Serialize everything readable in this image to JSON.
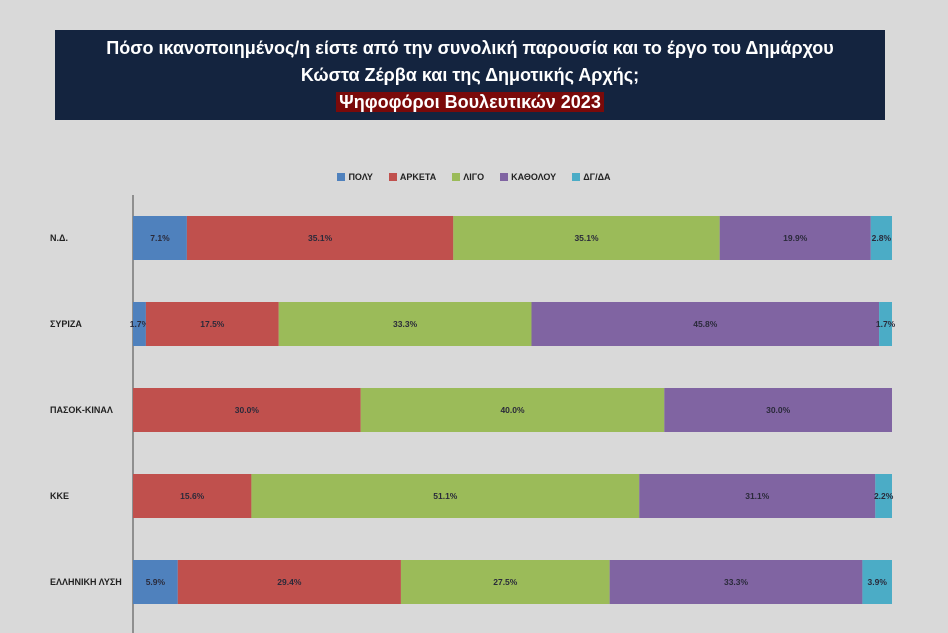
{
  "chart_data": {
    "type": "bar",
    "orientation": "horizontal-stacked-100",
    "title": [
      "Πόσο ικανοποιημένος/η είστε από την συνολική παρουσία και το έργο του Δημάρχου",
      "Κώστα Ζέρβα και της Δημοτικής Αρχής;"
    ],
    "subtitle": "Ψηφοφόροι Βουλευτικών 2023",
    "categories": [
      "Ν.Δ.",
      "ΣΥΡΙΖΑ",
      "ΠΑΣΟΚ-ΚΙΝΑΛ",
      "ΚΚΕ",
      "ΕΛΛΗΝΙΚΗ ΛΥΣΗ"
    ],
    "series": [
      {
        "name": "ΠΟΛΥ",
        "color": "#4f81bd",
        "values": [
          7.1,
          1.7,
          0,
          0,
          5.9
        ]
      },
      {
        "name": "ΑΡΚΕΤΑ",
        "color": "#c0504d",
        "values": [
          35.1,
          17.5,
          30.0,
          15.6,
          29.4
        ]
      },
      {
        "name": "ΛΙΓΟ",
        "color": "#9bbb59",
        "values": [
          35.1,
          33.3,
          40.0,
          51.1,
          27.5
        ]
      },
      {
        "name": "ΚΑΘΟΛΟΥ",
        "color": "#8064a2",
        "values": [
          19.9,
          45.8,
          30.0,
          31.1,
          33.3
        ]
      },
      {
        "name": "ΔΓ/ΔΑ",
        "color": "#4bacc6",
        "values": [
          2.8,
          1.7,
          0,
          2.2,
          3.9
        ]
      }
    ],
    "xlim": [
      0,
      100
    ],
    "legend": "top",
    "grid": false
  }
}
